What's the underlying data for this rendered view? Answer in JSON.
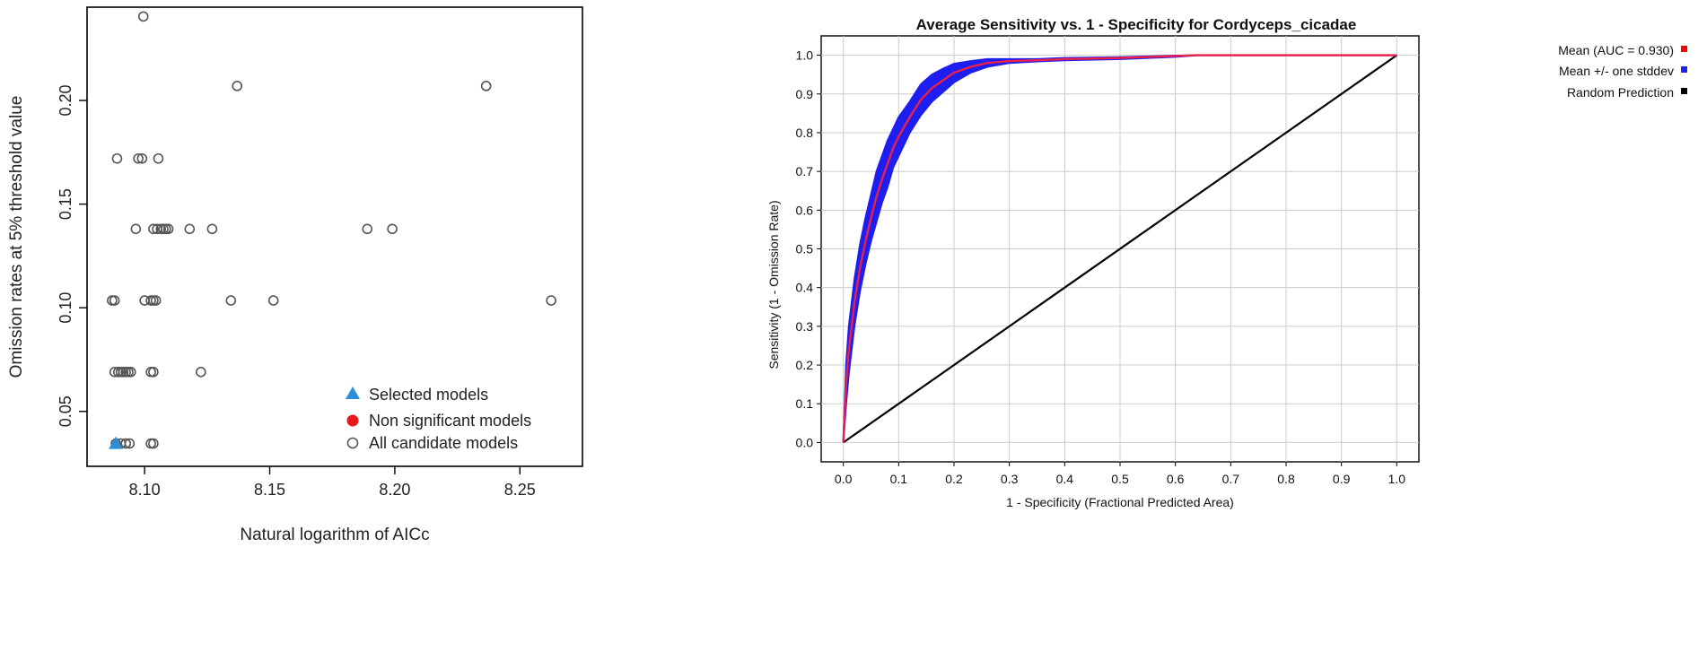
{
  "chart_data": [
    {
      "type": "scatter",
      "title": "",
      "xlabel": "Natural logarithm of AICc",
      "ylabel": "Omission rates at 5% threshold value",
      "xlim": [
        8.077,
        8.275
      ],
      "ylim": [
        0.0235,
        0.245
      ],
      "x_ticks": [
        8.1,
        8.15,
        8.2,
        8.25
      ],
      "x_tick_labels": [
        "8.10",
        "8.15",
        "8.20",
        "8.25"
      ],
      "y_ticks": [
        0.05,
        0.1,
        0.15,
        0.2
      ],
      "y_tick_labels": [
        "0.05",
        "0.10",
        "0.15",
        "0.20"
      ],
      "grid": false,
      "legend_position": "bottom-right",
      "legend": [
        {
          "label": "Selected models",
          "marker": "triangle",
          "color": "#2b8fd8"
        },
        {
          "label": "Non significant models",
          "marker": "filled-circle",
          "color": "#e8181a"
        },
        {
          "label": "All candidate models",
          "marker": "open-circle",
          "color": "#555555"
        }
      ],
      "series": [
        {
          "name": "All candidate models",
          "points": [
            [
              8.0995,
              0.2405
            ],
            [
              8.137,
              0.207
            ],
            [
              8.2365,
              0.207
            ],
            [
              8.089,
              0.172
            ],
            [
              8.0975,
              0.172
            ],
            [
              8.099,
              0.172
            ],
            [
              8.1055,
              0.172
            ],
            [
              8.0965,
              0.138
            ],
            [
              8.1035,
              0.138
            ],
            [
              8.105,
              0.138
            ],
            [
              8.1065,
              0.138
            ],
            [
              8.1075,
              0.138
            ],
            [
              8.1085,
              0.138
            ],
            [
              8.1095,
              0.138
            ],
            [
              8.118,
              0.138
            ],
            [
              8.127,
              0.138
            ],
            [
              8.189,
              0.138
            ],
            [
              8.199,
              0.138
            ],
            [
              8.087,
              0.1035
            ],
            [
              8.088,
              0.1035
            ],
            [
              8.1,
              0.1035
            ],
            [
              8.1025,
              0.1035
            ],
            [
              8.1035,
              0.1035
            ],
            [
              8.1045,
              0.1035
            ],
            [
              8.1345,
              0.1035
            ],
            [
              8.1515,
              0.1035
            ],
            [
              8.2625,
              0.1035
            ],
            [
              8.088,
              0.069
            ],
            [
              8.0895,
              0.069
            ],
            [
              8.0905,
              0.069
            ],
            [
              8.0915,
              0.069
            ],
            [
              8.0925,
              0.069
            ],
            [
              8.0935,
              0.069
            ],
            [
              8.0945,
              0.069
            ],
            [
              8.1025,
              0.069
            ],
            [
              8.1035,
              0.069
            ],
            [
              8.1225,
              0.069
            ],
            [
              8.0885,
              0.0345
            ],
            [
              8.0905,
              0.0345
            ],
            [
              8.0925,
              0.0345
            ],
            [
              8.094,
              0.0345
            ],
            [
              8.1025,
              0.0345
            ],
            [
              8.1035,
              0.0345
            ]
          ]
        },
        {
          "name": "Selected models",
          "points": [
            [
              8.0885,
              0.0345
            ]
          ]
        }
      ]
    },
    {
      "type": "line",
      "title": "Average Sensitivity vs. 1 - Specificity for Cordyceps_cicadae",
      "xlabel": "1 - Specificity (Fractional Predicted Area)",
      "ylabel": "Sensitivity (1 - Omission Rate)",
      "xlim": [
        -0.04,
        1.04
      ],
      "ylim": [
        -0.05,
        1.05
      ],
      "x_ticks": [
        0.0,
        0.1,
        0.2,
        0.3,
        0.4,
        0.5,
        0.6,
        0.7,
        0.8,
        0.9,
        1.0
      ],
      "x_tick_labels": [
        "0.0",
        "0.1",
        "0.2",
        "0.3",
        "0.4",
        "0.5",
        "0.6",
        "0.7",
        "0.8",
        "0.9",
        "1.0"
      ],
      "y_ticks": [
        0.0,
        0.1,
        0.2,
        0.3,
        0.4,
        0.5,
        0.6,
        0.7,
        0.8,
        0.9,
        1.0
      ],
      "y_tick_labels": [
        "0.0",
        "0.1",
        "0.2",
        "0.3",
        "0.4",
        "0.5",
        "0.6",
        "0.7",
        "0.8",
        "0.9",
        "1.0"
      ],
      "grid": true,
      "legend_position": "right",
      "legend": [
        {
          "label": "Mean (AUC = 0.930)",
          "color": "#ff0000"
        },
        {
          "label": "Mean +/- one stddev",
          "color": "#1e1ef0"
        },
        {
          "label": "Random Prediction",
          "color": "#000000"
        }
      ],
      "series": [
        {
          "name": "Mean (AUC = 0.930)",
          "color": "#e8204a",
          "x": [
            0,
            0.005,
            0.01,
            0.02,
            0.03,
            0.04,
            0.05,
            0.06,
            0.07,
            0.08,
            0.09,
            0.1,
            0.12,
            0.14,
            0.16,
            0.18,
            0.2,
            0.23,
            0.26,
            0.3,
            0.35,
            0.4,
            0.5,
            0.6,
            0.64,
            0.7,
            0.8,
            0.9,
            1.0
          ],
          "y": [
            0,
            0.15,
            0.24,
            0.36,
            0.45,
            0.52,
            0.58,
            0.635,
            0.68,
            0.72,
            0.76,
            0.79,
            0.84,
            0.885,
            0.915,
            0.935,
            0.955,
            0.97,
            0.98,
            0.985,
            0.987,
            0.99,
            0.993,
            0.998,
            1.0,
            1.0,
            1.0,
            1.0,
            1.0
          ]
        },
        {
          "name": "Mean +/- one stddev",
          "color": "#1e1ef0",
          "x": [
            0,
            0.005,
            0.01,
            0.02,
            0.03,
            0.04,
            0.05,
            0.06,
            0.07,
            0.08,
            0.09,
            0.1,
            0.12,
            0.14,
            0.16,
            0.18,
            0.2,
            0.23,
            0.26,
            0.3,
            0.35,
            0.4,
            0.5,
            0.6,
            0.64,
            0.7,
            0.8,
            0.9,
            1.0
          ],
          "upper": [
            0,
            0.2,
            0.3,
            0.42,
            0.51,
            0.58,
            0.64,
            0.7,
            0.74,
            0.78,
            0.81,
            0.84,
            0.88,
            0.925,
            0.95,
            0.965,
            0.978,
            0.985,
            0.99,
            0.99,
            0.99,
            0.993,
            0.995,
            0.999,
            1.0,
            1.0,
            1.0,
            1.0,
            1.0
          ],
          "lower": [
            0,
            0.1,
            0.18,
            0.3,
            0.39,
            0.46,
            0.52,
            0.57,
            0.62,
            0.66,
            0.71,
            0.74,
            0.8,
            0.845,
            0.88,
            0.905,
            0.93,
            0.955,
            0.97,
            0.98,
            0.984,
            0.987,
            0.99,
            0.996,
            1.0,
            1.0,
            1.0,
            1.0,
            1.0
          ]
        },
        {
          "name": "Random Prediction",
          "color": "#000000",
          "x": [
            0,
            1
          ],
          "y": [
            0,
            1
          ]
        }
      ]
    }
  ]
}
